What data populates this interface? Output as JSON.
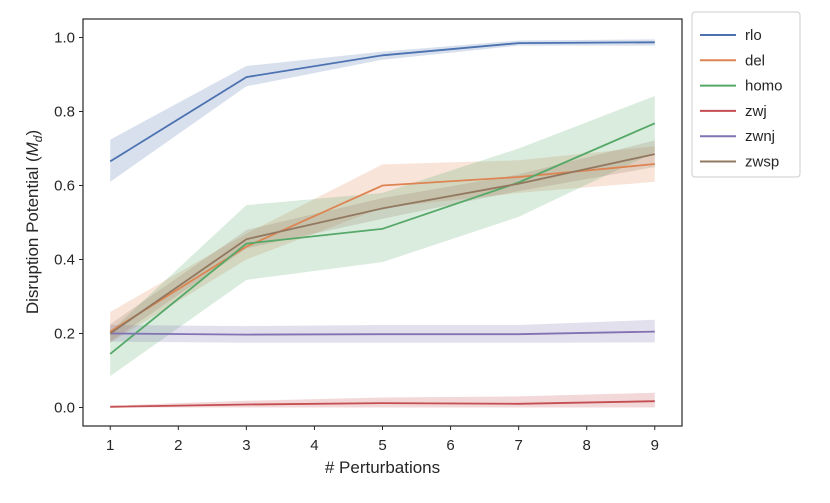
{
  "chart_data": {
    "type": "line",
    "title": "",
    "xlabel": "# Perturbations",
    "ylabel_main": "Disruption Potential (",
    "ylabel_math": "M",
    "ylabel_sub": "d",
    "ylabel_close": ")",
    "xlim": [
      0.6,
      9.4
    ],
    "ylim": [
      -0.05,
      1.05
    ],
    "x_ticks": [
      1,
      2,
      3,
      4,
      5,
      6,
      7,
      8,
      9
    ],
    "y_ticks": [
      0.0,
      0.2,
      0.4,
      0.6,
      0.8,
      1.0
    ],
    "y_tick_labels": [
      "0.0",
      "0.2",
      "0.4",
      "0.6",
      "0.8",
      "1.0"
    ],
    "grid": false,
    "legend_position": "outside-top-right",
    "x": [
      1,
      3,
      5,
      7,
      9
    ],
    "series": [
      {
        "name": "rlo",
        "color": "#4c72b0",
        "values": [
          0.665,
          0.893,
          0.952,
          0.985,
          0.987
        ],
        "lower": [
          0.61,
          0.868,
          0.94,
          0.978,
          0.978
        ],
        "upper": [
          0.724,
          0.923,
          0.962,
          0.992,
          0.995
        ]
      },
      {
        "name": "del",
        "color": "#dd8452",
        "values": [
          0.205,
          0.435,
          0.6,
          0.623,
          0.658
        ],
        "lower": [
          0.175,
          0.4,
          0.54,
          0.58,
          0.61
        ],
        "upper": [
          0.258,
          0.47,
          0.657,
          0.668,
          0.706
        ]
      },
      {
        "name": "homo",
        "color": "#55a868",
        "values": [
          0.145,
          0.443,
          0.483,
          0.608,
          0.768
        ],
        "lower": [
          0.085,
          0.345,
          0.393,
          0.515,
          0.69
        ],
        "upper": [
          0.205,
          0.547,
          0.58,
          0.7,
          0.842
        ]
      },
      {
        "name": "zwj",
        "color": "#c44e52",
        "values": [
          0.002,
          0.008,
          0.012,
          0.01,
          0.017
        ],
        "lower": [
          0.0,
          0.0,
          0.0,
          0.0,
          0.0
        ],
        "upper": [
          0.005,
          0.018,
          0.027,
          0.03,
          0.04
        ]
      },
      {
        "name": "zwnj",
        "color": "#8172b3",
        "values": [
          0.2,
          0.197,
          0.198,
          0.198,
          0.205
        ],
        "lower": [
          0.178,
          0.175,
          0.175,
          0.175,
          0.176
        ],
        "upper": [
          0.223,
          0.22,
          0.223,
          0.223,
          0.237
        ]
      },
      {
        "name": "zwsp",
        "color": "#937860",
        "values": [
          0.2,
          0.455,
          0.538,
          0.605,
          0.685
        ],
        "lower": [
          0.178,
          0.43,
          0.51,
          0.585,
          0.65
        ],
        "upper": [
          0.225,
          0.48,
          0.566,
          0.63,
          0.722
        ]
      }
    ]
  }
}
